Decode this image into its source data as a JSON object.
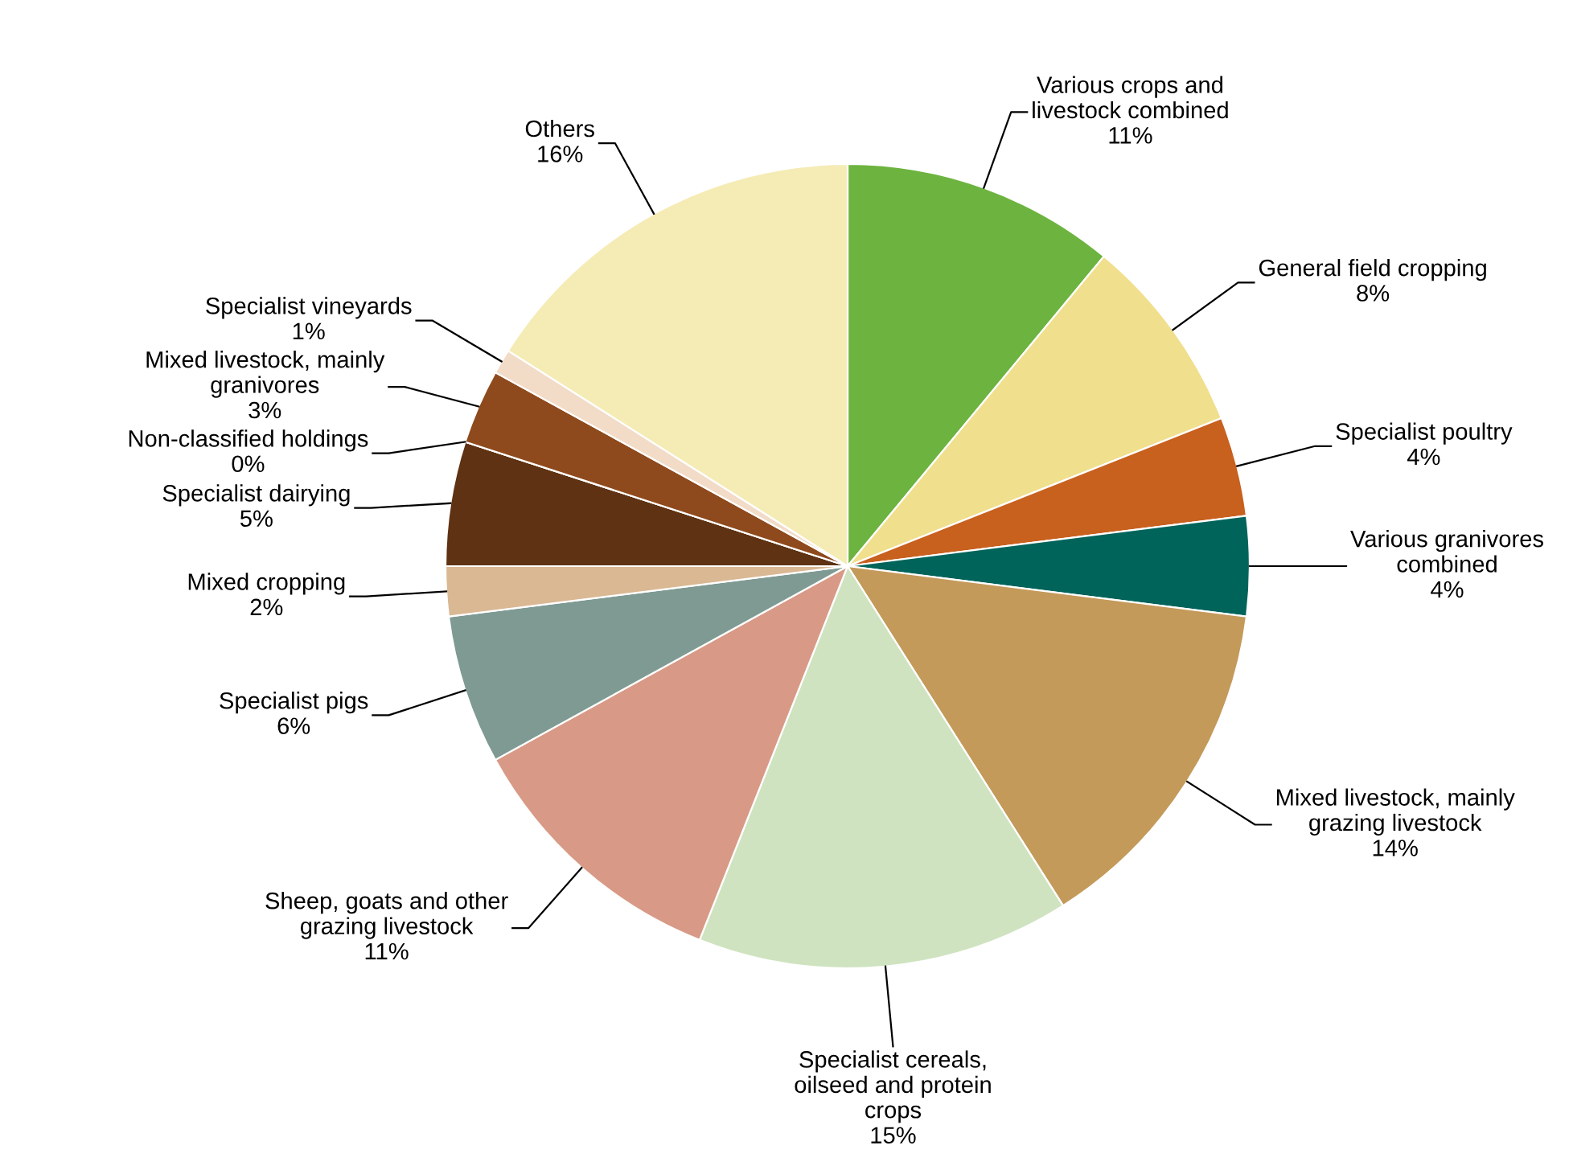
{
  "chart_data": {
    "type": "pie",
    "categories": [
      "Various crops and\nlivestock combined",
      "General field cropping",
      "Specialist poultry",
      "Various granivores\ncombined",
      "Mixed livestock, mainly\ngrazing livestock",
      "Specialist cereals,\noilseed and protein\ncrops",
      "Sheep, goats and other\ngrazing livestock",
      "Specialist pigs",
      "Mixed cropping",
      "Specialist dairying",
      "Non-classified holdings",
      "Mixed livestock, mainly\ngranivores",
      "Specialist vineyards",
      "Others"
    ],
    "values": [
      11,
      8,
      4,
      4,
      14,
      15,
      11,
      6,
      2,
      5,
      0,
      3,
      1,
      16
    ],
    "value_labels": [
      "11%",
      "8%",
      "4%",
      "4%",
      "14%",
      "15%",
      "11%",
      "6%",
      "2%",
      "5%",
      "0%",
      "3%",
      "1%",
      "16%"
    ],
    "colors": [
      "#6db33f",
      "#f0df8c",
      "#c8601e",
      "#00645a",
      "#c49a5a",
      "#d0e3c0",
      "#d89a86",
      "#7f9a93",
      "#d9b893",
      "#5e3212",
      "#a0a0a0",
      "#8e4a1c",
      "#f2dcc8",
      "#f5ebb5"
    ]
  }
}
